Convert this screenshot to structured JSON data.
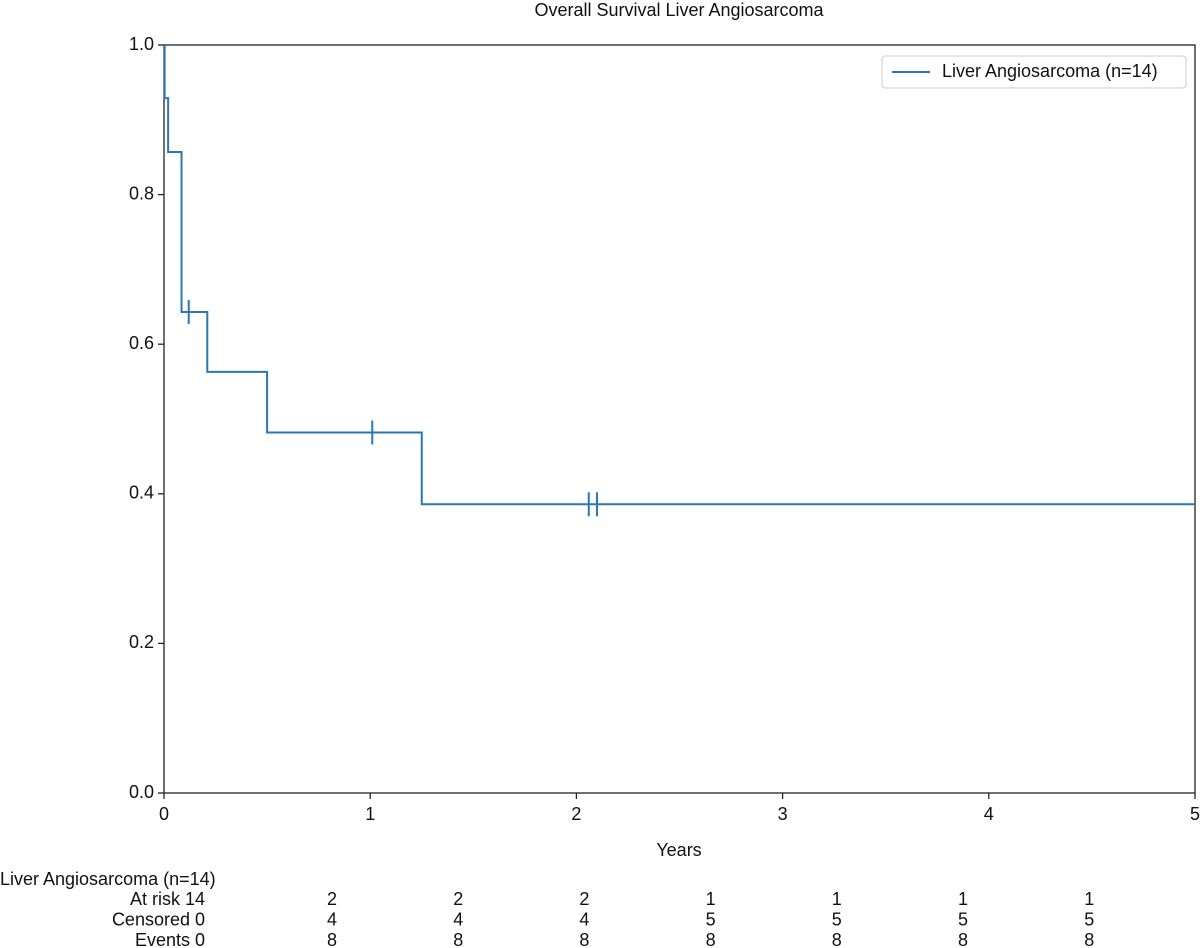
{
  "chart_data": {
    "type": "step",
    "title": "Overall Survival Liver Angiosarcoma",
    "xlabel": "Years",
    "series": [
      {
        "name": "Liver Angiosarcoma (n=14)",
        "color": "#2a77b4",
        "x": [
          0,
          0.003,
          0.02,
          0.085,
          0.21,
          0.5,
          1.25,
          5
        ],
        "values": [
          1.0,
          0.929,
          0.857,
          0.643,
          0.563,
          0.482,
          0.386,
          0.386
        ]
      }
    ],
    "censored": {
      "x": [
        0.12,
        1.01,
        2.06,
        2.1
      ],
      "values": [
        0.643,
        0.482,
        0.386,
        0.386
      ]
    },
    "xlim": [
      0,
      5
    ],
    "xticks": [
      0,
      1,
      2,
      3,
      4,
      5
    ],
    "ylim": [
      0,
      1
    ],
    "yticks": [
      {
        "value": 0,
        "label": "0.0"
      },
      0.2,
      0.4,
      0.6,
      0.8,
      {
        "value": 1,
        "label": "1.0"
      }
    ],
    "legend": "upper-right",
    "risk_table": {
      "group": "Liver Angiosarcoma (n=14)",
      "rows": [
        {
          "label": "At risk 14",
          "values": [
            2,
            2,
            2,
            1,
            1,
            1,
            1
          ]
        },
        {
          "label": "Censored 0",
          "values": [
            4,
            4,
            4,
            5,
            5,
            5,
            5
          ]
        },
        {
          "label": "Events 0",
          "values": [
            8,
            8,
            8,
            8,
            8,
            8,
            8
          ]
        }
      ]
    }
  }
}
